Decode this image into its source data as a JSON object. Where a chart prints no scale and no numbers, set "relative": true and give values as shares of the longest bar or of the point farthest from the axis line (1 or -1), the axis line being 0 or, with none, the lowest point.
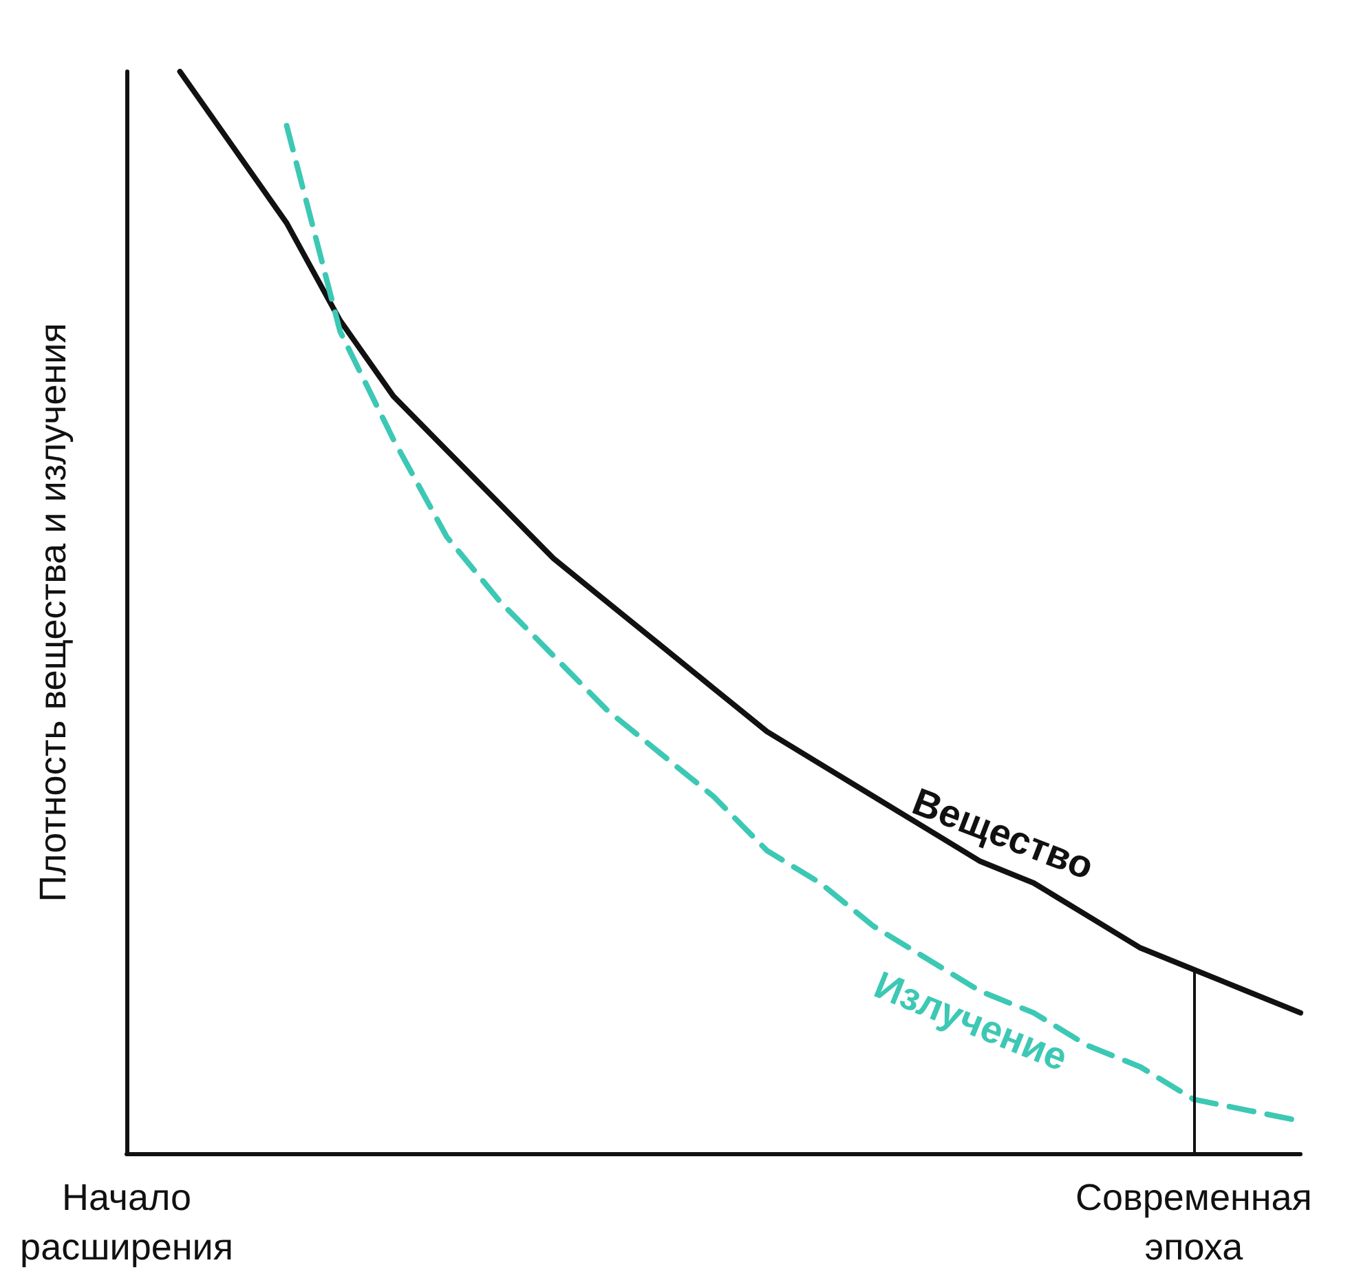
{
  "chart_data": {
    "type": "line",
    "relative": true,
    "ylabel": "Плотность вещества и излучения",
    "categories": [
      "Начало расширения",
      null,
      null,
      null,
      null,
      null,
      null,
      null,
      null,
      null,
      null,
      null,
      null,
      null,
      null,
      null,
      null,
      null,
      null,
      null,
      "Современная эпоха",
      null,
      null
    ],
    "series": [
      {
        "name": "Вещество",
        "color": "#111111",
        "line_style": "solid",
        "values": [
          null,
          1.0,
          0.93,
          0.86,
          0.77,
          0.7,
          0.65,
          0.6,
          0.55,
          0.51,
          0.47,
          0.43,
          0.39,
          0.36,
          0.33,
          0.3,
          0.27,
          0.25,
          0.22,
          0.19,
          0.17,
          0.15,
          0.13
        ]
      },
      {
        "name": "Излучение",
        "color": "#3cc8b4",
        "line_style": "dashed",
        "values": [
          null,
          null,
          null,
          0.95,
          0.76,
          0.66,
          0.57,
          0.51,
          0.46,
          0.41,
          0.37,
          0.33,
          0.28,
          0.25,
          0.21,
          0.18,
          0.15,
          0.13,
          0.1,
          0.08,
          0.05,
          0.04,
          0.03
        ]
      }
    ],
    "ref_lines": [
      {
        "axis": "x",
        "value": "Современная эпоха",
        "color": "#111111"
      }
    ],
    "marker": "none",
    "grid": false,
    "legend": false
  }
}
